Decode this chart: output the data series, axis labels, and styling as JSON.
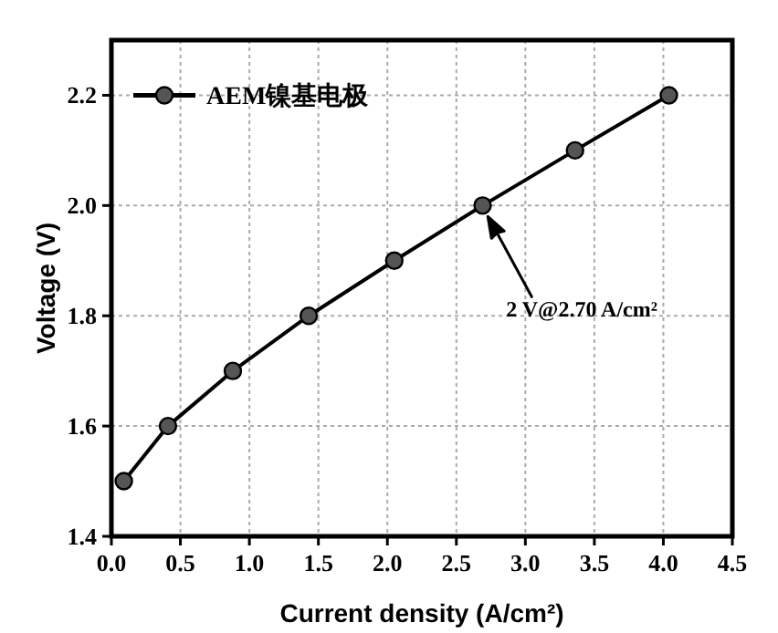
{
  "chart_data": {
    "type": "line",
    "xlabel": "Current density (A/cm²)",
    "ylabel": "Voltage (V)",
    "x": [
      0.09,
      0.41,
      0.88,
      1.43,
      2.05,
      2.69,
      3.36,
      4.04
    ],
    "series": [
      {
        "name": "AEM镍基电极",
        "color": "#000000",
        "values": [
          1.5,
          1.6,
          1.7,
          1.8,
          1.9,
          2.0,
          2.1,
          2.2
        ]
      }
    ],
    "xlim": [
      0,
      4.5
    ],
    "ylim": [
      1.4,
      2.3
    ],
    "xticks": [
      {
        "value": 0,
        "label": "0.0"
      },
      0.5,
      {
        "value": 1,
        "label": "1.0"
      },
      1.5,
      {
        "value": 2,
        "label": "2.0"
      },
      2.5,
      {
        "value": 3,
        "label": "3.0"
      },
      3.5,
      {
        "value": 4,
        "label": "4.0"
      },
      4.5
    ],
    "yticks": [
      1.4,
      1.6,
      1.8,
      {
        "value": 2,
        "label": "2.0"
      },
      2.2
    ],
    "annotations": [
      "2 V@2.70 A/cm²"
    ],
    "grid": true,
    "legend": "top left",
    "marker": "circle",
    "line_style": "solid"
  }
}
